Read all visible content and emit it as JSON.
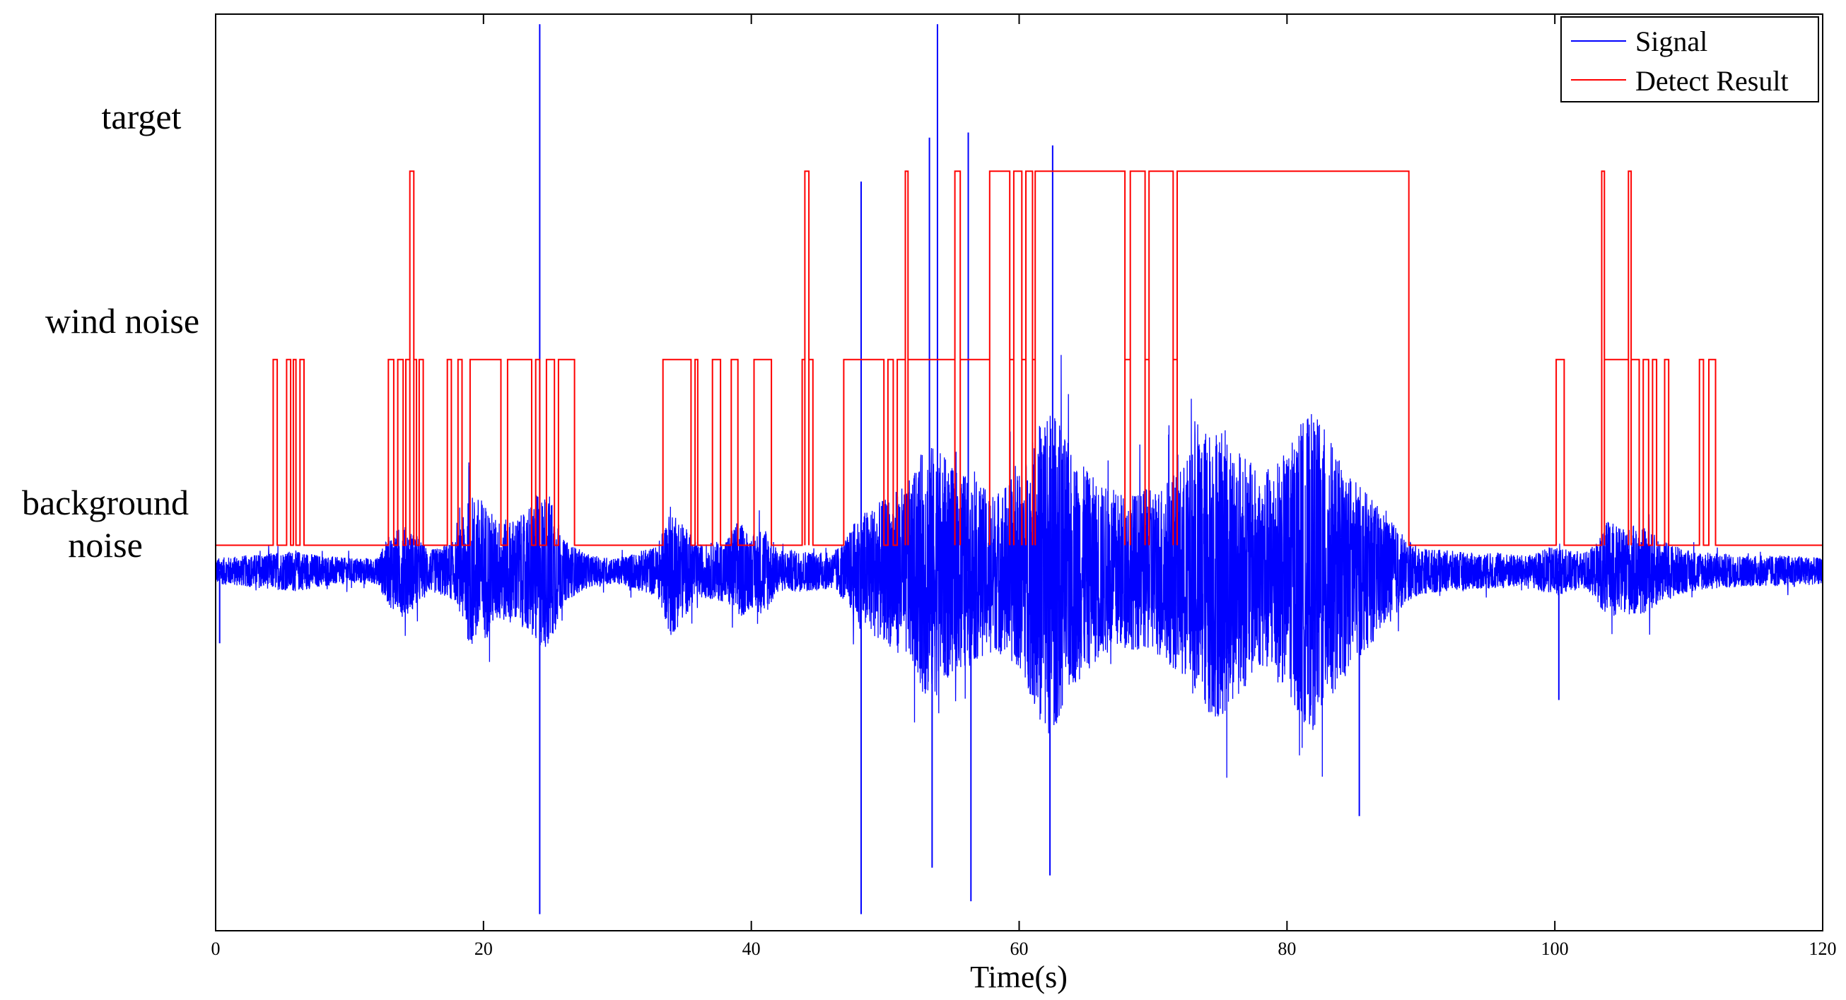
{
  "chart_data": {
    "type": "line",
    "title": "",
    "xlabel": "Time(s)",
    "ylabel": "",
    "xlim": [
      0,
      120
    ],
    "xticks": [
      0,
      20,
      40,
      60,
      80,
      100,
      120
    ],
    "grid": false,
    "legend_position": "top-right",
    "category_labels": [
      {
        "level": "target",
        "text": "target"
      },
      {
        "level": "wind",
        "text": "wind noise"
      },
      {
        "level": "background",
        "text": "background noise"
      }
    ],
    "series": [
      {
        "name": "Signal",
        "color": "#0000ff",
        "kind": "waveform",
        "envelope": {
          "t": [
            0,
            2,
            4,
            6,
            8,
            10,
            12,
            13,
            14,
            15,
            16,
            18,
            19,
            20,
            21,
            22,
            23,
            24,
            25,
            26,
            28,
            30,
            33,
            34,
            35,
            36,
            38,
            39,
            40,
            41,
            42,
            44,
            46,
            47,
            48,
            50,
            52,
            53,
            54,
            55,
            56,
            58,
            60,
            61,
            62,
            63,
            64,
            66,
            68,
            70,
            72,
            73,
            74,
            75,
            76,
            78,
            80,
            81,
            82,
            83,
            84,
            86,
            88,
            89,
            90,
            92,
            94,
            96,
            98,
            100,
            101,
            102,
            103,
            104,
            105,
            106,
            107,
            108,
            110,
            112,
            114,
            116,
            118,
            120
          ],
          "amplitude": [
            0.05,
            0.06,
            0.07,
            0.08,
            0.06,
            0.05,
            0.05,
            0.14,
            0.18,
            0.14,
            0.08,
            0.12,
            0.3,
            0.28,
            0.2,
            0.2,
            0.22,
            0.3,
            0.3,
            0.12,
            0.06,
            0.05,
            0.1,
            0.26,
            0.18,
            0.1,
            0.12,
            0.2,
            0.14,
            0.18,
            0.08,
            0.08,
            0.07,
            0.12,
            0.22,
            0.28,
            0.36,
            0.5,
            0.48,
            0.4,
            0.38,
            0.3,
            0.38,
            0.5,
            0.66,
            0.58,
            0.45,
            0.34,
            0.3,
            0.32,
            0.4,
            0.48,
            0.56,
            0.58,
            0.5,
            0.38,
            0.46,
            0.58,
            0.62,
            0.54,
            0.42,
            0.3,
            0.18,
            0.12,
            0.09,
            0.08,
            0.07,
            0.07,
            0.06,
            0.1,
            0.08,
            0.07,
            0.1,
            0.2,
            0.16,
            0.18,
            0.16,
            0.12,
            0.08,
            0.07,
            0.06,
            0.06,
            0.06,
            0.05
          ]
        },
        "spikes": [
          {
            "t": 0.3,
            "y": -0.28
          },
          {
            "t": 24.2,
            "y": 2.12
          },
          {
            "t": 24.2,
            "y": -1.33
          },
          {
            "t": 48.2,
            "y": -1.33
          },
          {
            "t": 48.2,
            "y": 1.51
          },
          {
            "t": 53.3,
            "y": 1.68
          },
          {
            "t": 53.5,
            "y": -1.15
          },
          {
            "t": 53.9,
            "y": 2.12
          },
          {
            "t": 56.4,
            "y": -1.28
          },
          {
            "t": 56.2,
            "y": 1.7
          },
          {
            "t": 62.3,
            "y": -1.18
          },
          {
            "t": 62.5,
            "y": 1.65
          },
          {
            "t": 85.4,
            "y": -0.95
          },
          {
            "t": 100.3,
            "y": -0.5
          }
        ]
      },
      {
        "name": "Detect Result",
        "color": "#ff0000",
        "kind": "step",
        "levels": {
          "background": 0.1,
          "wind": 0.82,
          "target": 1.55
        },
        "segments": [
          {
            "t0": 4.3,
            "t1": 4.6,
            "level": "wind"
          },
          {
            "t0": 5.3,
            "t1": 5.6,
            "level": "wind"
          },
          {
            "t0": 5.8,
            "t1": 6.0,
            "level": "wind"
          },
          {
            "t0": 6.3,
            "t1": 6.6,
            "level": "wind"
          },
          {
            "t0": 12.9,
            "t1": 13.3,
            "level": "wind"
          },
          {
            "t0": 13.6,
            "t1": 14.0,
            "level": "wind"
          },
          {
            "t0": 14.2,
            "t1": 14.5,
            "level": "wind"
          },
          {
            "t0": 14.5,
            "t1": 14.8,
            "level": "target"
          },
          {
            "t0": 14.8,
            "t1": 15.0,
            "level": "wind"
          },
          {
            "t0": 15.2,
            "t1": 15.5,
            "level": "wind"
          },
          {
            "t0": 17.3,
            "t1": 17.6,
            "level": "wind"
          },
          {
            "t0": 18.1,
            "t1": 18.4,
            "level": "wind"
          },
          {
            "t0": 19.0,
            "t1": 21.3,
            "level": "wind"
          },
          {
            "t0": 21.8,
            "t1": 23.6,
            "level": "wind"
          },
          {
            "t0": 23.9,
            "t1": 24.2,
            "level": "wind"
          },
          {
            "t0": 24.7,
            "t1": 25.3,
            "level": "wind"
          },
          {
            "t0": 25.6,
            "t1": 26.8,
            "level": "wind"
          },
          {
            "t0": 33.4,
            "t1": 35.5,
            "level": "wind"
          },
          {
            "t0": 35.8,
            "t1": 36.0,
            "level": "wind"
          },
          {
            "t0": 37.1,
            "t1": 37.7,
            "level": "wind"
          },
          {
            "t0": 38.5,
            "t1": 39.0,
            "level": "wind"
          },
          {
            "t0": 40.2,
            "t1": 41.5,
            "level": "wind"
          },
          {
            "t0": 43.8,
            "t1": 44.0,
            "level": "wind"
          },
          {
            "t0": 44.0,
            "t1": 44.3,
            "level": "target"
          },
          {
            "t0": 44.3,
            "t1": 44.6,
            "level": "wind"
          },
          {
            "t0": 46.9,
            "t1": 49.9,
            "level": "wind"
          },
          {
            "t0": 50.2,
            "t1": 50.6,
            "level": "wind"
          },
          {
            "t0": 50.9,
            "t1": 51.5,
            "level": "wind"
          },
          {
            "t0": 51.5,
            "t1": 51.7,
            "level": "target"
          },
          {
            "t0": 51.7,
            "t1": 55.2,
            "level": "wind"
          },
          {
            "t0": 55.2,
            "t1": 55.6,
            "level": "target"
          },
          {
            "t0": 55.6,
            "t1": 57.8,
            "level": "wind"
          },
          {
            "t0": 57.8,
            "t1": 59.3,
            "level": "target"
          },
          {
            "t0": 59.3,
            "t1": 59.6,
            "level": "wind"
          },
          {
            "t0": 59.6,
            "t1": 60.2,
            "level": "target"
          },
          {
            "t0": 60.2,
            "t1": 60.5,
            "level": "wind"
          },
          {
            "t0": 60.5,
            "t1": 61.0,
            "level": "target"
          },
          {
            "t0": 61.0,
            "t1": 61.2,
            "level": "wind"
          },
          {
            "t0": 61.2,
            "t1": 67.9,
            "level": "target"
          },
          {
            "t0": 67.9,
            "t1": 68.3,
            "level": "wind"
          },
          {
            "t0": 68.3,
            "t1": 69.4,
            "level": "target"
          },
          {
            "t0": 69.4,
            "t1": 69.7,
            "level": "wind"
          },
          {
            "t0": 69.7,
            "t1": 71.5,
            "level": "target"
          },
          {
            "t0": 71.5,
            "t1": 71.8,
            "level": "wind"
          },
          {
            "t0": 71.8,
            "t1": 89.1,
            "level": "target"
          },
          {
            "t0": 100.1,
            "t1": 100.7,
            "level": "wind"
          },
          {
            "t0": 103.5,
            "t1": 103.7,
            "level": "target"
          },
          {
            "t0": 103.7,
            "t1": 105.5,
            "level": "wind"
          },
          {
            "t0": 105.5,
            "t1": 105.7,
            "level": "target"
          },
          {
            "t0": 105.7,
            "t1": 106.3,
            "level": "wind"
          },
          {
            "t0": 106.6,
            "t1": 107.0,
            "level": "wind"
          },
          {
            "t0": 107.3,
            "t1": 107.6,
            "level": "wind"
          },
          {
            "t0": 108.2,
            "t1": 108.5,
            "level": "wind"
          },
          {
            "t0": 110.8,
            "t1": 111.1,
            "level": "wind"
          },
          {
            "t0": 111.5,
            "t1": 112.0,
            "level": "wind"
          }
        ]
      }
    ]
  }
}
